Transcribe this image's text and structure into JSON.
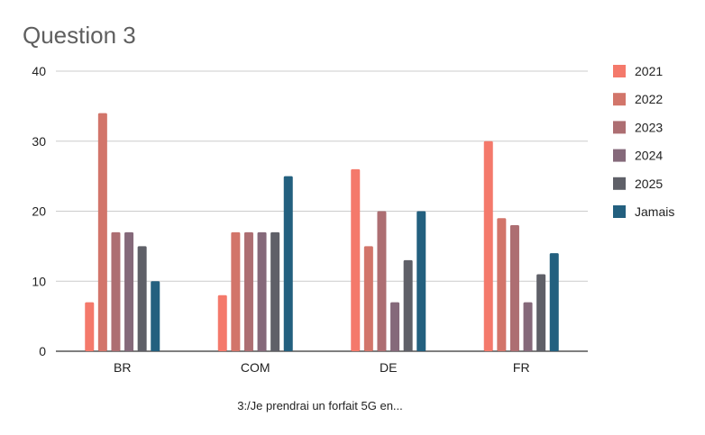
{
  "chart_data": {
    "type": "bar",
    "title": "Question 3",
    "xlabel": "3:/Je prendrai un forfait 5G en...",
    "ylabel": "",
    "ylim": [
      0,
      40
    ],
    "yticks": [
      0,
      10,
      20,
      30,
      40
    ],
    "grid": true,
    "legend_position": "right",
    "categories": [
      "BR",
      "COM",
      "DE",
      "FR"
    ],
    "series": [
      {
        "name": "2021",
        "color": "#f4796b",
        "values": [
          7,
          8,
          26,
          30
        ]
      },
      {
        "name": "2022",
        "color": "#d2756a",
        "values": [
          34,
          17,
          15,
          19
        ]
      },
      {
        "name": "2023",
        "color": "#ad6e72",
        "values": [
          17,
          17,
          20,
          18
        ]
      },
      {
        "name": "2024",
        "color": "#85697a",
        "values": [
          17,
          17,
          7,
          7
        ]
      },
      {
        "name": "2025",
        "color": "#5f6068",
        "values": [
          15,
          17,
          13,
          11
        ]
      },
      {
        "name": "Jamais",
        "color": "#23607f",
        "values": [
          10,
          25,
          20,
          14
        ]
      }
    ]
  }
}
